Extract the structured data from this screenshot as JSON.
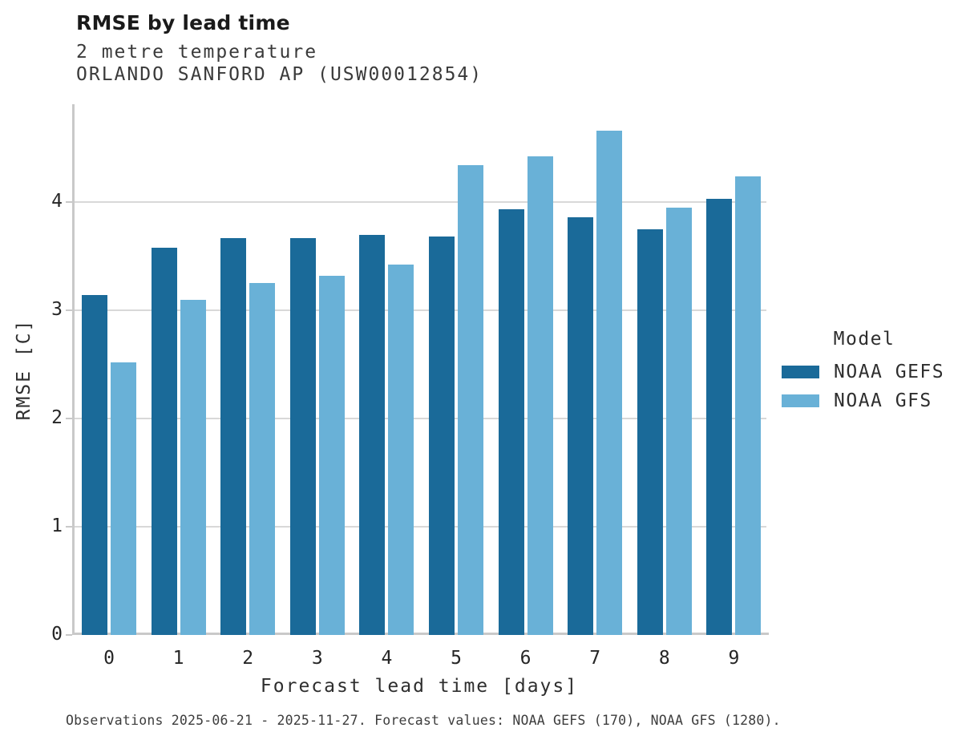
{
  "chart_data": {
    "type": "bar",
    "title": "RMSE by lead time",
    "subtitle": "2 metre temperature",
    "station": "ORLANDO SANFORD AP (USW00012854)",
    "xlabel": "Forecast lead time [days]",
    "ylabel": "RMSE [C]",
    "categories": [
      "0",
      "1",
      "2",
      "3",
      "4",
      "5",
      "6",
      "7",
      "8",
      "9"
    ],
    "series": [
      {
        "name": "NOAA GEFS",
        "color": "#1a6a99",
        "values": [
          3.14,
          3.58,
          3.67,
          3.67,
          3.7,
          3.68,
          3.93,
          3.86,
          3.75,
          4.03
        ]
      },
      {
        "name": "NOAA GFS",
        "color": "#69b1d7",
        "values": [
          2.52,
          3.1,
          3.25,
          3.32,
          3.42,
          4.34,
          4.42,
          4.66,
          3.95,
          4.24
        ]
      }
    ],
    "ylim": [
      0,
      4.9
    ],
    "yticks": [
      0,
      1,
      2,
      3,
      4
    ],
    "grid": "horizontal",
    "legend": {
      "title": "Model",
      "position": "right-center"
    },
    "caption": "Observations 2025-06-21 - 2025-11-27. Forecast values: NOAA GEFS (170), NOAA GFS (1280)."
  }
}
